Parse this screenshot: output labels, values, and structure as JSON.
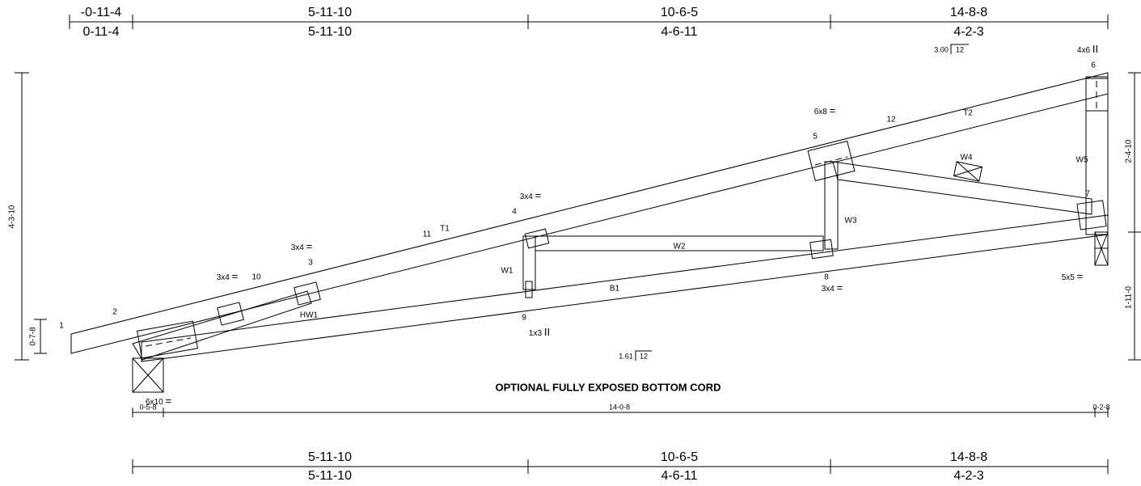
{
  "top_dimensions": {
    "cumulative": [
      "-0-11-4",
      "5-11-10",
      "10-6-5",
      "14-8-8"
    ],
    "segments": [
      "0-11-4",
      "5-11-10",
      "4-6-11",
      "4-2-3"
    ]
  },
  "bottom_dimensions": {
    "cumulative": [
      "5-11-10",
      "10-6-5",
      "14-8-8"
    ],
    "segments": [
      "5-11-10",
      "4-6-11",
      "4-2-3"
    ]
  },
  "pitch_top": {
    "rise": "3.00",
    "run": "12"
  },
  "pitch_bottom": {
    "rise": "1.61",
    "run": "12"
  },
  "joints": [
    "1",
    "2",
    "3",
    "4",
    "5",
    "6",
    "7",
    "8",
    "9",
    "10",
    "11",
    "12"
  ],
  "members": [
    "T1",
    "T2",
    "W1",
    "W2",
    "W3",
    "W4",
    "W5",
    "B1",
    "HW1"
  ],
  "plates": [
    {
      "size": "4x6",
      "symbol": "II"
    },
    {
      "size": "6x8",
      "symbol": "="
    },
    {
      "size": "3x4",
      "symbol": "="
    },
    {
      "size": "3x4",
      "symbol": "="
    },
    {
      "size": "3x4",
      "symbol": "="
    },
    {
      "size": "3x4",
      "symbol": "="
    },
    {
      "size": "5x5",
      "symbol": "="
    },
    {
      "size": "1x3",
      "symbol": "II"
    },
    {
      "size": "6x10",
      "symbol": "="
    }
  ],
  "left_heights": [
    "4-3-10",
    "0-7-8"
  ],
  "right_heights": [
    "2-4-10",
    "1-11-0"
  ],
  "bearing_dimensions": [
    "0-5-8",
    "14-0-8",
    "0-2-8"
  ],
  "note": "OPTIONAL FULLY EXPOSED BOTTOM CORD"
}
